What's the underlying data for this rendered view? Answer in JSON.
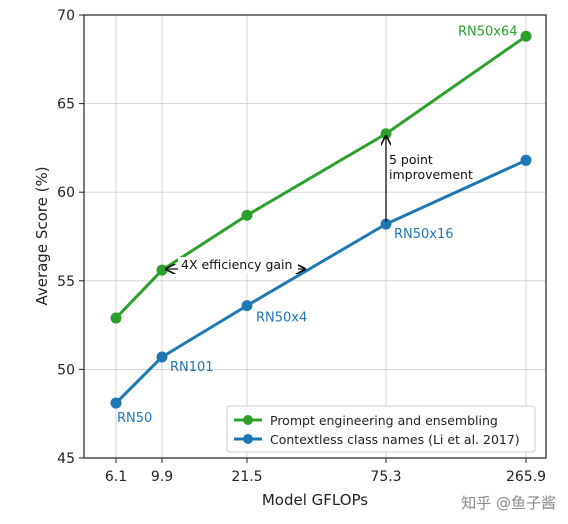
{
  "chart_data": {
    "type": "line",
    "title": "",
    "xlabel": "Model GFLOPs",
    "ylabel": "Average Score (%)",
    "x_ticks": [
      "6.1",
      "9.9",
      "21.5",
      "75.3",
      "265.9"
    ],
    "ylim": [
      45,
      70
    ],
    "y_ticks": [
      "45",
      "50",
      "55",
      "60",
      "65",
      "70"
    ],
    "grid": true,
    "legend_position": "lower-right",
    "series": [
      {
        "name": "Prompt engineering and ensembling",
        "color": "#2ca02c",
        "x_index": [
          0,
          1,
          2,
          3,
          4
        ],
        "values": [
          52.9,
          55.6,
          58.7,
          63.3,
          68.8
        ],
        "point_labels": [
          "",
          "",
          "",
          "",
          "RN50x64"
        ]
      },
      {
        "name": "Contextless class names (Li et al. 2017)",
        "color": "#1f77b4",
        "x_index": [
          0,
          1,
          2,
          3,
          4
        ],
        "values": [
          48.1,
          50.7,
          53.6,
          58.2,
          61.8
        ],
        "point_labels": [
          "RN50",
          "RN101",
          "RN50x4",
          "RN50x16",
          ""
        ]
      }
    ],
    "annotations": {
      "efficiency": "4X efficiency gain",
      "improvement_line1": "5 point",
      "improvement_line2": "improvement"
    }
  },
  "watermark": "知乎 @鱼子酱"
}
